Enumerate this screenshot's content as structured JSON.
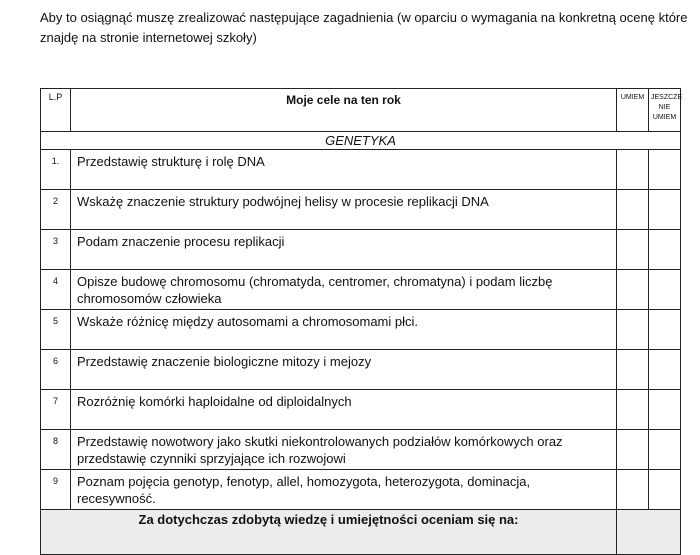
{
  "intro": "Aby to osiągnąć muszę zrealizować następujące zagadnienia (w oparciu o wymagania na konkretną ocenę które znajdę na stronie internetowej szkoły)",
  "table": {
    "headers": {
      "lp": "L.P",
      "goals": "Moje cele na  ten rok",
      "can": "UMIEM",
      "cannot": "JESZCZE NIE UMIEM"
    },
    "section": "GENETYKA",
    "rows": [
      {
        "n": "1.",
        "text": "Przedstawię strukturę i rolę DNA"
      },
      {
        "n": "2",
        "text": "Wskażę znaczenie struktury podwójnej helisy w procesie replikacji DNA"
      },
      {
        "n": "3",
        "text": "Podam znaczenie procesu replikacji"
      },
      {
        "n": "4",
        "text": "Opisze budowę chromosomu (chromatyda, centromer, chromatyna) i podam liczbę chromosomów człowieka"
      },
      {
        "n": "5",
        "text": "Wskaże różnicę między autosomami a chromosomami płci."
      },
      {
        "n": "6",
        "text": "Przedstawię znaczenie biologiczne mitozy i mejozy"
      },
      {
        "n": "7",
        "text": "Rozróżnię komórki haploidalne od diploidalnych"
      },
      {
        "n": "8",
        "text": "Przedstawię nowotwory jako skutki niekontrolowanych podziałów komórkowych oraz przedstawię czynniki sprzyjające ich rozwojowi"
      },
      {
        "n": "9",
        "text": "Poznam pojęcia genotyp, fenotyp, allel, homozygota, heterozygota, dominacja, recesywność."
      }
    ],
    "summary": "Za dotychczas zdobytą wiedzę i umiejętności oceniam się na:"
  }
}
